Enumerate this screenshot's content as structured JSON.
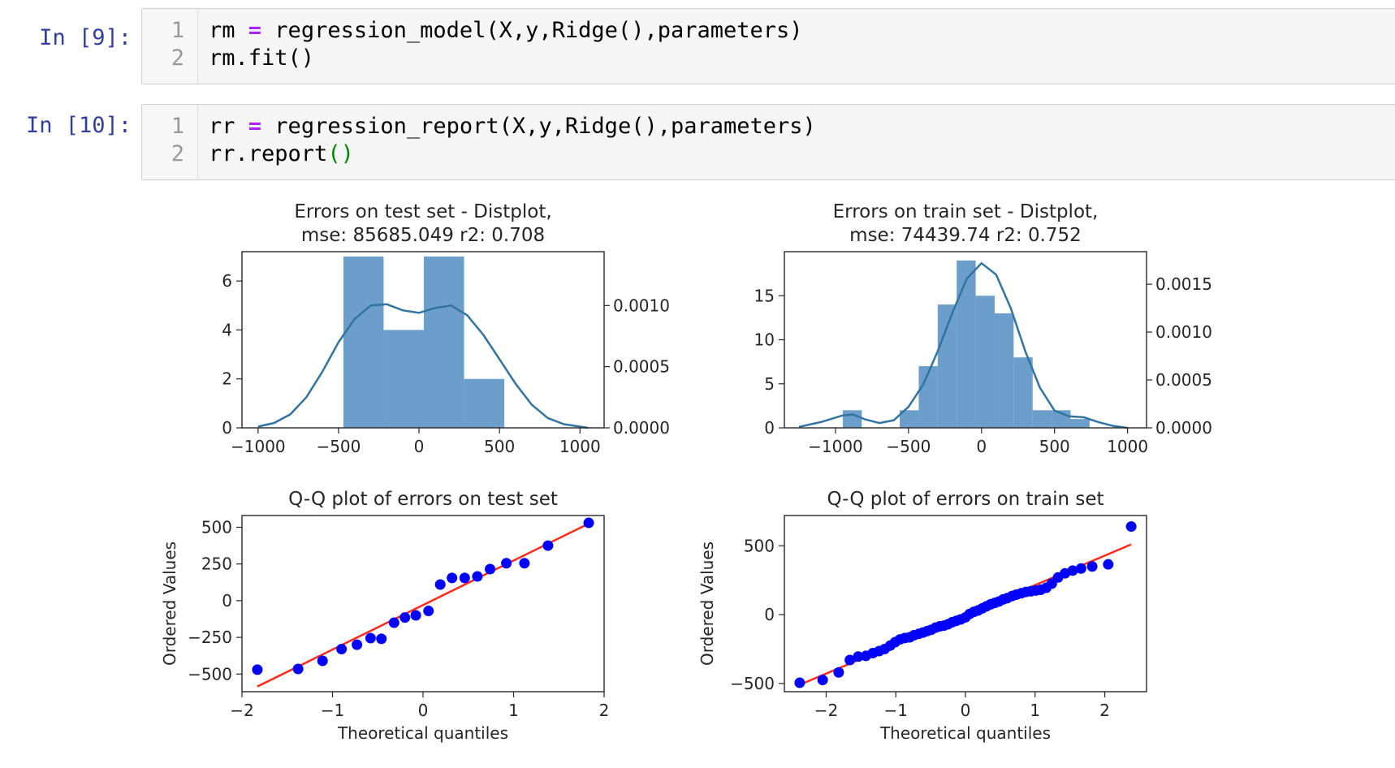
{
  "cells": [
    {
      "prompt": "In [9]:",
      "lines": [
        {
          "num": "1",
          "pre": "rm ",
          "op": "=",
          "post": " regression_model(X,y,Ridge(),parameters)",
          "paren": ""
        },
        {
          "num": "2",
          "pre": "rm.fit()",
          "op": "",
          "post": "",
          "paren": ""
        }
      ]
    },
    {
      "prompt": "In [10]:",
      "lines": [
        {
          "num": "1",
          "pre": "rr ",
          "op": "=",
          "post": " regression_report(X,y,Ridge(),parameters)",
          "paren": ""
        },
        {
          "num": "2",
          "pre": "rr.report",
          "op": "",
          "post": "",
          "paren": "()"
        }
      ]
    }
  ],
  "chart_data": [
    {
      "type": "bar",
      "subtype": "distplot",
      "title": "Errors on test set - Distplot,\nmse: 85685.049 r2: 0.708",
      "title_lines": [
        "Errors on test set - Distplot,",
        "mse: 85685.049 r2: 0.708"
      ],
      "xlim": [
        -1100,
        1150
      ],
      "ylim": [
        0,
        7.2
      ],
      "y2lim": [
        0,
        0.00144
      ],
      "xticks": [
        -1000,
        -500,
        0,
        500,
        1000
      ],
      "yticks": [
        0,
        2,
        4,
        6
      ],
      "y2ticks": [
        0.0,
        0.0005,
        0.001
      ],
      "y2ticklabels": [
        "0.0000",
        "0.0005",
        "0.0010"
      ],
      "bins": [
        {
          "x0": -470,
          "x1": -220,
          "count": 7
        },
        {
          "x0": -220,
          "x1": 30,
          "count": 4
        },
        {
          "x0": 30,
          "x1": 280,
          "count": 7
        },
        {
          "x0": 280,
          "x1": 530,
          "count": 2
        }
      ],
      "kde_x": [
        -1000,
        -900,
        -800,
        -700,
        -600,
        -500,
        -400,
        -300,
        -200,
        -100,
        0,
        100,
        200,
        300,
        400,
        500,
        600,
        700,
        800,
        900,
        1000,
        1050
      ],
      "kde_y": [
        1e-05,
        4e-05,
        0.00011,
        0.00025,
        0.00046,
        0.0007,
        0.00089,
        0.001,
        0.00101,
        0.00096,
        0.00094,
        0.00098,
        0.001,
        0.00092,
        0.00076,
        0.00056,
        0.00036,
        0.00019,
        8e-05,
        3e-05,
        1e-05,
        0.0
      ]
    },
    {
      "type": "bar",
      "subtype": "distplot",
      "title": "Errors on train set - Distplot,\nmse: 74439.74 r2: 0.752",
      "title_lines": [
        "Errors on train set - Distplot,",
        "mse: 74439.74 r2: 0.752"
      ],
      "xlim": [
        -1350,
        1130
      ],
      "ylim": [
        0,
        20
      ],
      "y2lim": [
        0,
        0.00184
      ],
      "xticks": [
        -1000,
        -500,
        0,
        500,
        1000
      ],
      "yticks": [
        0,
        5,
        10,
        15
      ],
      "y2ticks": [
        0.0,
        0.0005,
        0.001,
        0.0015
      ],
      "y2ticklabels": [
        "0.0000",
        "0.0005",
        "0.0010",
        "0.0015"
      ],
      "bins": [
        {
          "x0": -950,
          "x1": -820,
          "count": 2
        },
        {
          "x0": -820,
          "x1": -690,
          "count": 0
        },
        {
          "x0": -690,
          "x1": -560,
          "count": 0
        },
        {
          "x0": -560,
          "x1": -430,
          "count": 2
        },
        {
          "x0": -430,
          "x1": -300,
          "count": 7
        },
        {
          "x0": -300,
          "x1": -170,
          "count": 14
        },
        {
          "x0": -170,
          "x1": -40,
          "count": 19
        },
        {
          "x0": -40,
          "x1": 90,
          "count": 15
        },
        {
          "x0": 90,
          "x1": 220,
          "count": 13
        },
        {
          "x0": 220,
          "x1": 350,
          "count": 8
        },
        {
          "x0": 350,
          "x1": 480,
          "count": 2
        },
        {
          "x0": 480,
          "x1": 610,
          "count": 2
        },
        {
          "x0": 610,
          "x1": 740,
          "count": 1
        }
      ],
      "kde_x": [
        -1250,
        -1100,
        -950,
        -880,
        -800,
        -700,
        -600,
        -500,
        -400,
        -300,
        -200,
        -100,
        0,
        100,
        200,
        300,
        400,
        500,
        600,
        700,
        800,
        900,
        1000
      ],
      "kde_y": [
        1e-05,
        6e-05,
        0.00013,
        0.00014,
        9e-05,
        5e-05,
        8e-05,
        0.00022,
        0.00045,
        0.0008,
        0.0012,
        0.00156,
        0.00172,
        0.0016,
        0.00125,
        0.0008,
        0.00042,
        0.00018,
        0.00012,
        0.00011,
        6e-05,
        2e-05,
        0.0
      ]
    },
    {
      "type": "scatter",
      "subtype": "qq-plot",
      "title": "Q-Q plot of errors on test set",
      "xlabel": "Theoretical quantiles",
      "ylabel": "Ordered Values",
      "xlim": [
        -2,
        2
      ],
      "ylim": [
        -620,
        580
      ],
      "xticks": [
        -2,
        -1,
        0,
        1,
        2
      ],
      "yticks": [
        -500,
        -250,
        0,
        250,
        500
      ],
      "yticklabels": [
        "−500",
        "−250",
        "0",
        "250",
        "500"
      ],
      "xticklabels": [
        "−2",
        "−1",
        "0",
        "1",
        "2"
      ],
      "points": [
        [
          -1.83,
          -470
        ],
        [
          -1.38,
          -465
        ],
        [
          -1.11,
          -410
        ],
        [
          -0.9,
          -330
        ],
        [
          -0.73,
          -300
        ],
        [
          -0.58,
          -255
        ],
        [
          -0.46,
          -260
        ],
        [
          -0.32,
          -150
        ],
        [
          -0.2,
          -115
        ],
        [
          -0.08,
          -100
        ],
        [
          0.06,
          -70
        ],
        [
          0.19,
          110
        ],
        [
          0.32,
          155
        ],
        [
          0.46,
          155
        ],
        [
          0.6,
          165
        ],
        [
          0.74,
          215
        ],
        [
          0.92,
          255
        ],
        [
          1.12,
          255
        ],
        [
          1.38,
          375
        ],
        [
          1.83,
          530
        ]
      ],
      "fit_line": {
        "x": [
          -1.83,
          1.83
        ],
        "y": [
          -585,
          525
        ]
      }
    },
    {
      "type": "scatter",
      "subtype": "qq-plot",
      "title": "Q-Q plot of errors on train set",
      "xlabel": "Theoretical quantiles",
      "ylabel": "Ordered Values",
      "xlim": [
        -2.6,
        2.6
      ],
      "ylim": [
        -560,
        720
      ],
      "xticks": [
        -2,
        -1,
        0,
        1,
        2
      ],
      "yticks": [
        -500,
        0,
        500
      ],
      "yticklabels": [
        "−500",
        "0",
        "500"
      ],
      "xticklabels": [
        "−2",
        "−1",
        "0",
        "1",
        "2"
      ],
      "points": [
        [
          -2.38,
          -495
        ],
        [
          -2.05,
          -475
        ],
        [
          -1.82,
          -420
        ],
        [
          -1.66,
          -330
        ],
        [
          -1.54,
          -305
        ],
        [
          -1.43,
          -300
        ],
        [
          -1.33,
          -280
        ],
        [
          -1.24,
          -265
        ],
        [
          -1.16,
          -250
        ],
        [
          -1.08,
          -225
        ],
        [
          -1.01,
          -200
        ],
        [
          -0.94,
          -180
        ],
        [
          -0.87,
          -170
        ],
        [
          -0.8,
          -165
        ],
        [
          -0.74,
          -150
        ],
        [
          -0.67,
          -140
        ],
        [
          -0.61,
          -130
        ],
        [
          -0.55,
          -120
        ],
        [
          -0.49,
          -110
        ],
        [
          -0.43,
          -95
        ],
        [
          -0.37,
          -85
        ],
        [
          -0.31,
          -80
        ],
        [
          -0.25,
          -70
        ],
        [
          -0.19,
          -55
        ],
        [
          -0.13,
          -45
        ],
        [
          -0.07,
          -35
        ],
        [
          0.0,
          -20
        ],
        [
          0.06,
          5
        ],
        [
          0.12,
          20
        ],
        [
          0.18,
          30
        ],
        [
          0.24,
          45
        ],
        [
          0.3,
          60
        ],
        [
          0.36,
          75
        ],
        [
          0.42,
          85
        ],
        [
          0.48,
          95
        ],
        [
          0.54,
          110
        ],
        [
          0.6,
          120
        ],
        [
          0.67,
          135
        ],
        [
          0.73,
          145
        ],
        [
          0.8,
          155
        ],
        [
          0.87,
          165
        ],
        [
          0.94,
          170
        ],
        [
          1.01,
          175
        ],
        [
          1.08,
          180
        ],
        [
          1.16,
          195
        ],
        [
          1.24,
          225
        ],
        [
          1.33,
          270
        ],
        [
          1.43,
          300
        ],
        [
          1.54,
          320
        ],
        [
          1.66,
          335
        ],
        [
          1.82,
          350
        ],
        [
          2.05,
          365
        ],
        [
          2.38,
          640
        ]
      ],
      "fit_line": {
        "x": [
          -2.38,
          2.38
        ],
        "y": [
          -510,
          510
        ]
      }
    }
  ]
}
